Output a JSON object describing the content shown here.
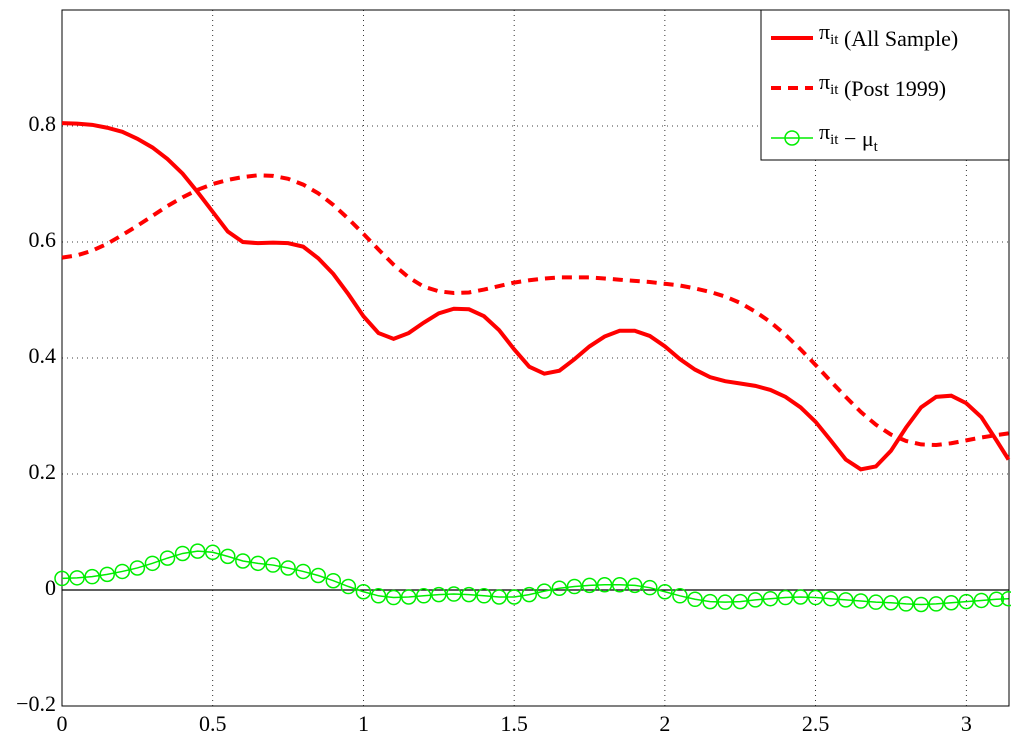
{
  "chart_data": {
    "type": "line",
    "x": [
      0,
      0.05,
      0.1,
      0.15,
      0.2,
      0.25,
      0.3,
      0.35,
      0.4,
      0.45,
      0.5,
      0.55,
      0.6,
      0.65,
      0.7,
      0.75,
      0.8,
      0.85,
      0.9,
      0.95,
      1.0,
      1.05,
      1.1,
      1.15,
      1.2,
      1.25,
      1.3,
      1.35,
      1.4,
      1.45,
      1.5,
      1.55,
      1.6,
      1.65,
      1.7,
      1.75,
      1.8,
      1.85,
      1.9,
      1.95,
      2.0,
      2.05,
      2.1,
      2.15,
      2.2,
      2.25,
      2.3,
      2.35,
      2.4,
      2.45,
      2.5,
      2.55,
      2.6,
      2.65,
      2.7,
      2.75,
      2.8,
      2.85,
      2.9,
      2.95,
      3.0,
      3.05,
      3.1,
      3.14
    ],
    "series": [
      {
        "name": "πit (All Sample)",
        "color": "#ff0000",
        "linestyle": "solid",
        "values": [
          0.805,
          0.804,
          0.802,
          0.797,
          0.79,
          0.778,
          0.763,
          0.743,
          0.718,
          0.686,
          0.652,
          0.618,
          0.6,
          0.598,
          0.599,
          0.598,
          0.592,
          0.572,
          0.545,
          0.51,
          0.472,
          0.443,
          0.433,
          0.443,
          0.461,
          0.477,
          0.485,
          0.484,
          0.472,
          0.448,
          0.415,
          0.385,
          0.373,
          0.378,
          0.398,
          0.42,
          0.437,
          0.447,
          0.447,
          0.438,
          0.42,
          0.398,
          0.38,
          0.367,
          0.36,
          0.356,
          0.352,
          0.345,
          0.333,
          0.315,
          0.29,
          0.258,
          0.225,
          0.208,
          0.213,
          0.24,
          0.28,
          0.315,
          0.333,
          0.335,
          0.322,
          0.298,
          0.258,
          0.225
        ]
      },
      {
        "name": "πit (Post 1999)",
        "color": "#ff0000",
        "linestyle": "dashed",
        "values": [
          0.573,
          0.577,
          0.585,
          0.597,
          0.612,
          0.628,
          0.645,
          0.662,
          0.677,
          0.69,
          0.7,
          0.707,
          0.712,
          0.715,
          0.714,
          0.709,
          0.699,
          0.684,
          0.664,
          0.64,
          0.614,
          0.587,
          0.561,
          0.539,
          0.523,
          0.515,
          0.512,
          0.513,
          0.518,
          0.524,
          0.53,
          0.534,
          0.537,
          0.539,
          0.539,
          0.539,
          0.537,
          0.535,
          0.533,
          0.531,
          0.528,
          0.525,
          0.52,
          0.514,
          0.506,
          0.495,
          0.48,
          0.462,
          0.44,
          0.415,
          0.388,
          0.36,
          0.333,
          0.307,
          0.285,
          0.268,
          0.257,
          0.251,
          0.25,
          0.253,
          0.258,
          0.263,
          0.267,
          0.27
        ]
      },
      {
        "name": "πit − μt",
        "color": "#00ee00",
        "linestyle": "solid",
        "marker": "o",
        "values": [
          0.02,
          0.021,
          0.023,
          0.027,
          0.032,
          0.038,
          0.046,
          0.055,
          0.063,
          0.067,
          0.065,
          0.058,
          0.05,
          0.046,
          0.043,
          0.038,
          0.032,
          0.025,
          0.016,
          0.006,
          -0.003,
          -0.01,
          -0.013,
          -0.012,
          -0.01,
          -0.008,
          -0.007,
          -0.008,
          -0.01,
          -0.012,
          -0.012,
          -0.008,
          -0.002,
          0.003,
          0.006,
          0.008,
          0.009,
          0.009,
          0.008,
          0.004,
          -0.003,
          -0.01,
          -0.016,
          -0.02,
          -0.021,
          -0.02,
          -0.017,
          -0.015,
          -0.013,
          -0.012,
          -0.013,
          -0.015,
          -0.017,
          -0.019,
          -0.021,
          -0.022,
          -0.024,
          -0.025,
          -0.024,
          -0.022,
          -0.02,
          -0.018,
          -0.016,
          -0.015
        ]
      }
    ],
    "xlim": [
      0,
      3.1416
    ],
    "xticks": [
      0,
      0.5,
      1,
      1.5,
      2,
      2.5,
      3
    ],
    "ylim": [
      -0.2,
      1
    ],
    "yticks": [
      {
        "value": -0.2,
        "label": "−0.2"
      },
      0,
      0.2,
      0.4,
      0.6,
      0.8
    ],
    "grid": true,
    "legend": "upper right"
  }
}
